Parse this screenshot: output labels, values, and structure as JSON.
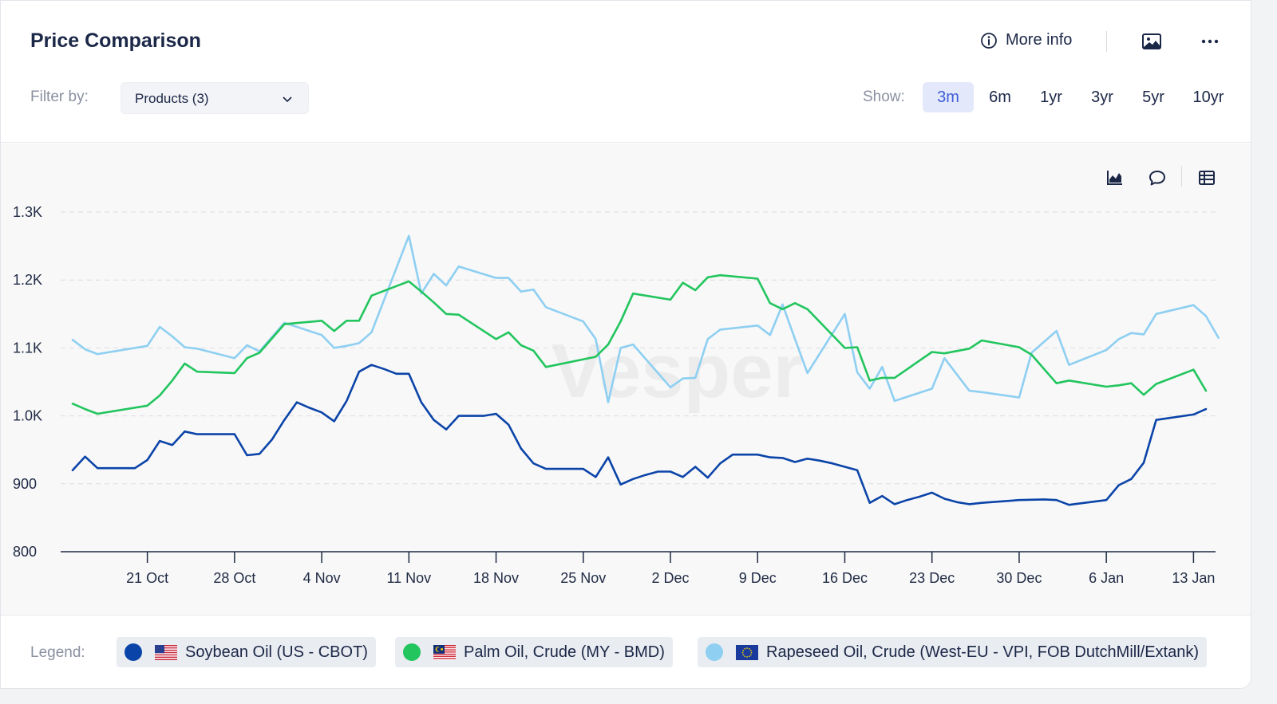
{
  "header": {
    "title": "Price Comparison",
    "more_info": "More info",
    "filter_label": "Filter by:",
    "filter_value": "Products (3)",
    "show_label": "Show:",
    "ranges": [
      "3m",
      "6m",
      "1yr",
      "3yr",
      "5yr",
      "10yr"
    ],
    "active_range": "3m"
  },
  "legend": {
    "label": "Legend:",
    "items": [
      {
        "label": "Soybean Oil (US - CBOT)",
        "color": "#0b44a8",
        "flag": "us-flag-icon"
      },
      {
        "label": "Palm Oil, Crude (MY - BMD)",
        "color": "#22c55e",
        "flag": "my-flag-icon"
      },
      {
        "label": "Rapeseed Oil, Crude (West-EU - VPI, FOB DutchMill/Extank)",
        "color": "#8ecff2",
        "flag": "eu-flag-icon"
      }
    ]
  },
  "chart_data": {
    "type": "line",
    "title": "",
    "watermark": "Vesper",
    "x_ticks": [
      "21 Oct",
      "28 Oct",
      "4 Nov",
      "11 Nov",
      "18 Nov",
      "25 Nov",
      "2 Dec",
      "9 Dec",
      "16 Dec",
      "23 Dec",
      "30 Dec",
      "6 Jan",
      "13 Jan"
    ],
    "x_start": "2024-10-15",
    "x_end": "2025-01-14",
    "y_ticks": [
      "800",
      "900",
      "1.0K",
      "1.1K",
      "1.2K",
      "1.3K"
    ],
    "ylim": [
      800,
      1300
    ],
    "grid": true,
    "series": [
      {
        "name": "Soybean Oil (US - CBOT)",
        "color": "#0b44a8",
        "points": [
          [
            "2024-10-15",
            920
          ],
          [
            "2024-10-16",
            940
          ],
          [
            "2024-10-17",
            923
          ],
          [
            "2024-10-18",
            923
          ],
          [
            "2024-10-19",
            923
          ],
          [
            "2024-10-20",
            923
          ],
          [
            "2024-10-21",
            935
          ],
          [
            "2024-10-22",
            963
          ],
          [
            "2024-10-23",
            957
          ],
          [
            "2024-10-24",
            977
          ],
          [
            "2024-10-25",
            973
          ],
          [
            "2024-10-26",
            973
          ],
          [
            "2024-10-27",
            973
          ],
          [
            "2024-10-28",
            973
          ],
          [
            "2024-10-29",
            942
          ],
          [
            "2024-10-30",
            944
          ],
          [
            "2024-10-31",
            965
          ],
          [
            "2024-11-01",
            994
          ],
          [
            "2024-11-02",
            1020
          ],
          [
            "2024-11-03",
            1012
          ],
          [
            "2024-11-04",
            1005
          ],
          [
            "2024-11-05",
            992
          ],
          [
            "2024-11-06",
            1022
          ],
          [
            "2024-11-07",
            1065
          ],
          [
            "2024-11-08",
            1075
          ],
          [
            "2024-11-09",
            1069
          ],
          [
            "2024-11-10",
            1062
          ],
          [
            "2024-11-11",
            1062
          ],
          [
            "2024-11-12",
            1020
          ],
          [
            "2024-11-13",
            994
          ],
          [
            "2024-11-14",
            980
          ],
          [
            "2024-11-15",
            1000
          ],
          [
            "2024-11-16",
            1000
          ],
          [
            "2024-11-17",
            1000
          ],
          [
            "2024-11-18",
            1003
          ],
          [
            "2024-11-19",
            987
          ],
          [
            "2024-11-20",
            952
          ],
          [
            "2024-11-21",
            930
          ],
          [
            "2024-11-22",
            922
          ],
          [
            "2024-11-23",
            922
          ],
          [
            "2024-11-24",
            922
          ],
          [
            "2024-11-25",
            922
          ],
          [
            "2024-11-26",
            910
          ],
          [
            "2024-11-27",
            939
          ],
          [
            "2024-11-28",
            899
          ],
          [
            "2024-11-29",
            907
          ],
          [
            "2024-11-30",
            913
          ],
          [
            "2024-12-01",
            918
          ],
          [
            "2024-12-02",
            918
          ],
          [
            "2024-12-03",
            910
          ],
          [
            "2024-12-04",
            925
          ],
          [
            "2024-12-05",
            909
          ],
          [
            "2024-12-06",
            930
          ],
          [
            "2024-12-07",
            943
          ],
          [
            "2024-12-08",
            943
          ],
          [
            "2024-12-09",
            943
          ],
          [
            "2024-12-10",
            939
          ],
          [
            "2024-12-11",
            938
          ],
          [
            "2024-12-12",
            932
          ],
          [
            "2024-12-13",
            937
          ],
          [
            "2024-12-14",
            934
          ],
          [
            "2024-12-15",
            930
          ],
          [
            "2024-12-16",
            925
          ],
          [
            "2024-12-17",
            920
          ],
          [
            "2024-12-18",
            872
          ],
          [
            "2024-12-19",
            882
          ],
          [
            "2024-12-20",
            870
          ],
          [
            "2024-12-21",
            876
          ],
          [
            "2024-12-22",
            881
          ],
          [
            "2024-12-23",
            887
          ],
          [
            "2024-12-24",
            878
          ],
          [
            "2024-12-25",
            873
          ],
          [
            "2024-12-26",
            870
          ],
          [
            "2024-12-27",
            872
          ],
          [
            "2024-12-30",
            876
          ],
          [
            "2025-01-01",
            877
          ],
          [
            "2025-01-02",
            876
          ],
          [
            "2025-01-03",
            869
          ],
          [
            "2025-01-06",
            876
          ],
          [
            "2025-01-07",
            898
          ],
          [
            "2025-01-08",
            907
          ],
          [
            "2025-01-09",
            931
          ],
          [
            "2025-01-10",
            994
          ],
          [
            "2025-01-13",
            1002
          ],
          [
            "2025-01-14",
            1010
          ]
        ]
      },
      {
        "name": "Palm Oil, Crude (MY - BMD)",
        "color": "#22c55e",
        "points": [
          [
            "2024-10-15",
            1018
          ],
          [
            "2024-10-16",
            1010
          ],
          [
            "2024-10-17",
            1003
          ],
          [
            "2024-10-21",
            1015
          ],
          [
            "2024-10-22",
            1030
          ],
          [
            "2024-10-23",
            1052
          ],
          [
            "2024-10-24",
            1077
          ],
          [
            "2024-10-25",
            1065
          ],
          [
            "2024-10-28",
            1063
          ],
          [
            "2024-10-29",
            1085
          ],
          [
            "2024-10-30",
            1093
          ],
          [
            "2024-11-01",
            1135
          ],
          [
            "2024-11-04",
            1140
          ],
          [
            "2024-11-05",
            1125
          ],
          [
            "2024-11-06",
            1140
          ],
          [
            "2024-11-07",
            1140
          ],
          [
            "2024-11-08",
            1177
          ],
          [
            "2024-11-11",
            1198
          ],
          [
            "2024-11-12",
            1183
          ],
          [
            "2024-11-13",
            1167
          ],
          [
            "2024-11-14",
            1150
          ],
          [
            "2024-11-15",
            1149
          ],
          [
            "2024-11-18",
            1113
          ],
          [
            "2024-11-19",
            1123
          ],
          [
            "2024-11-20",
            1104
          ],
          [
            "2024-11-21",
            1096
          ],
          [
            "2024-11-22",
            1072
          ],
          [
            "2024-11-26",
            1087
          ],
          [
            "2024-11-27",
            1105
          ],
          [
            "2024-11-28",
            1139
          ],
          [
            "2024-11-29",
            1180
          ],
          [
            "2024-12-02",
            1171
          ],
          [
            "2024-12-03",
            1196
          ],
          [
            "2024-12-04",
            1185
          ],
          [
            "2024-12-05",
            1204
          ],
          [
            "2024-12-06",
            1207
          ],
          [
            "2024-12-09",
            1202
          ],
          [
            "2024-12-10",
            1166
          ],
          [
            "2024-12-11",
            1157
          ],
          [
            "2024-12-12",
            1166
          ],
          [
            "2024-12-13",
            1157
          ],
          [
            "2024-12-16",
            1100
          ],
          [
            "2024-12-17",
            1101
          ],
          [
            "2024-12-18",
            1052
          ],
          [
            "2024-12-19",
            1056
          ],
          [
            "2024-12-20",
            1056
          ],
          [
            "2024-12-23",
            1094
          ],
          [
            "2024-12-24",
            1092
          ],
          [
            "2024-12-26",
            1099
          ],
          [
            "2024-12-27",
            1111
          ],
          [
            "2024-12-30",
            1101
          ],
          [
            "2024-12-31",
            1090
          ],
          [
            "2025-01-02",
            1048
          ],
          [
            "2025-01-03",
            1052
          ],
          [
            "2025-01-06",
            1043
          ],
          [
            "2025-01-07",
            1045
          ],
          [
            "2025-01-08",
            1048
          ],
          [
            "2025-01-09",
            1031
          ],
          [
            "2025-01-10",
            1047
          ],
          [
            "2025-01-13",
            1068
          ],
          [
            "2025-01-14",
            1037
          ]
        ]
      },
      {
        "name": "Rapeseed Oil, Crude (West-EU - VPI, FOB DutchMill/Extank)",
        "color": "#8ecff2",
        "points": [
          [
            "2024-10-15",
            1112
          ],
          [
            "2024-10-16",
            1098
          ],
          [
            "2024-10-17",
            1091
          ],
          [
            "2024-10-21",
            1103
          ],
          [
            "2024-10-22",
            1131
          ],
          [
            "2024-10-23",
            1117
          ],
          [
            "2024-10-24",
            1101
          ],
          [
            "2024-10-25",
            1099
          ],
          [
            "2024-10-28",
            1085
          ],
          [
            "2024-10-29",
            1104
          ],
          [
            "2024-10-30",
            1095
          ],
          [
            "2024-11-01",
            1137
          ],
          [
            "2024-11-04",
            1119
          ],
          [
            "2024-11-05",
            1100
          ],
          [
            "2024-11-06",
            1103
          ],
          [
            "2024-11-07",
            1107
          ],
          [
            "2024-11-08",
            1123
          ],
          [
            "2024-11-11",
            1265
          ],
          [
            "2024-11-12",
            1180
          ],
          [
            "2024-11-13",
            1209
          ],
          [
            "2024-11-14",
            1192
          ],
          [
            "2024-11-15",
            1220
          ],
          [
            "2024-11-18",
            1203
          ],
          [
            "2024-11-19",
            1203
          ],
          [
            "2024-11-20",
            1183
          ],
          [
            "2024-11-21",
            1186
          ],
          [
            "2024-11-22",
            1160
          ],
          [
            "2024-11-25",
            1139
          ],
          [
            "2024-11-26",
            1113
          ],
          [
            "2024-11-27",
            1020
          ],
          [
            "2024-11-28",
            1100
          ],
          [
            "2024-11-29",
            1105
          ],
          [
            "2024-12-02",
            1042
          ],
          [
            "2024-12-03",
            1055
          ],
          [
            "2024-12-04",
            1056
          ],
          [
            "2024-12-05",
            1113
          ],
          [
            "2024-12-06",
            1127
          ],
          [
            "2024-12-09",
            1133
          ],
          [
            "2024-12-10",
            1119
          ],
          [
            "2024-12-11",
            1164
          ],
          [
            "2024-12-12",
            1113
          ],
          [
            "2024-12-13",
            1063
          ],
          [
            "2024-12-16",
            1150
          ],
          [
            "2024-12-17",
            1064
          ],
          [
            "2024-12-18",
            1040
          ],
          [
            "2024-12-19",
            1072
          ],
          [
            "2024-12-20",
            1022
          ],
          [
            "2024-12-23",
            1040
          ],
          [
            "2024-12-24",
            1085
          ],
          [
            "2024-12-26",
            1037
          ],
          [
            "2024-12-27",
            1035
          ],
          [
            "2024-12-30",
            1027
          ],
          [
            "2024-12-31",
            1093
          ],
          [
            "2025-01-02",
            1125
          ],
          [
            "2025-01-03",
            1075
          ],
          [
            "2025-01-06",
            1097
          ],
          [
            "2025-01-07",
            1113
          ],
          [
            "2025-01-08",
            1122
          ],
          [
            "2025-01-09",
            1120
          ],
          [
            "2025-01-10",
            1150
          ],
          [
            "2025-01-13",
            1163
          ],
          [
            "2025-01-14",
            1147
          ],
          [
            "2025-01-15",
            1115
          ]
        ]
      }
    ]
  }
}
